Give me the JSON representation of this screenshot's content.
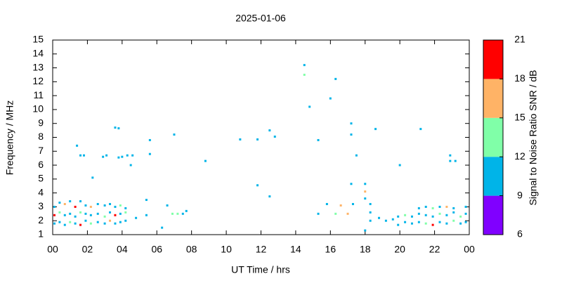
{
  "chart_data": {
    "type": "scatter",
    "title": "2025-01-06",
    "x_label": "UT Time / hrs",
    "y_label": "Frequency / MHz",
    "xlim": [
      0,
      24
    ],
    "xticks": [
      {
        "value": 0,
        "label": "00"
      },
      {
        "value": 2,
        "label": "02"
      },
      {
        "value": 4,
        "label": "04"
      },
      {
        "value": 6,
        "label": "06"
      },
      {
        "value": 8,
        "label": "08"
      },
      10,
      12,
      14,
      16,
      18,
      20,
      22,
      {
        "value": 24,
        "label": "00"
      }
    ],
    "ylim": [
      1,
      15
    ],
    "yticks": [
      1,
      2,
      3,
      4,
      5,
      6,
      7,
      8,
      9,
      10,
      11,
      12,
      13,
      14,
      15
    ],
    "colorbar": {
      "label": "Signal to Noise Ratio SNR / dB",
      "lim": [
        6,
        21
      ],
      "ticks": [
        6,
        9,
        12,
        15,
        18,
        21
      ],
      "colors": [
        "#8000ff",
        "#00b4e8",
        "#80ffa8",
        "#ffb366",
        "#ff0000"
      ]
    },
    "points": [
      [
        0.1,
        1.8,
        10
      ],
      [
        0.1,
        2.4,
        19
      ],
      [
        0.1,
        3.0,
        10
      ],
      [
        0.4,
        1.9,
        10
      ],
      [
        0.4,
        2.6,
        13
      ],
      [
        0.4,
        3.3,
        10
      ],
      [
        0.7,
        1.7,
        10
      ],
      [
        0.7,
        2.4,
        10
      ],
      [
        0.7,
        3.2,
        17
      ],
      [
        1.0,
        1.9,
        13
      ],
      [
        1.0,
        2.5,
        10
      ],
      [
        1.0,
        3.4,
        10
      ],
      [
        1.3,
        1.8,
        10
      ],
      [
        1.3,
        2.3,
        10
      ],
      [
        1.3,
        3.0,
        19
      ],
      [
        1.6,
        1.7,
        19
      ],
      [
        1.6,
        2.6,
        13
      ],
      [
        1.6,
        3.4,
        10
      ],
      [
        1.9,
        2.0,
        10
      ],
      [
        1.9,
        2.5,
        10
      ],
      [
        1.9,
        3.1,
        10
      ],
      [
        2.2,
        1.8,
        13
      ],
      [
        2.2,
        2.4,
        10
      ],
      [
        2.2,
        3.0,
        17
      ],
      [
        2.6,
        1.9,
        10
      ],
      [
        2.6,
        2.5,
        10
      ],
      [
        2.6,
        3.2,
        10
      ],
      [
        3.0,
        1.8,
        10
      ],
      [
        3.0,
        2.3,
        13
      ],
      [
        3.0,
        3.1,
        10
      ],
      [
        3.3,
        2.0,
        17
      ],
      [
        3.3,
        2.6,
        10
      ],
      [
        3.3,
        3.2,
        10
      ],
      [
        3.6,
        1.8,
        10
      ],
      [
        3.6,
        2.4,
        19
      ],
      [
        3.6,
        3.0,
        10
      ],
      [
        3.9,
        1.9,
        10
      ],
      [
        3.9,
        2.5,
        10
      ],
      [
        3.9,
        3.1,
        13
      ],
      [
        4.2,
        2.0,
        10
      ],
      [
        4.2,
        2.6,
        13
      ],
      [
        4.2,
        2.9,
        10
      ],
      [
        4.8,
        2.2,
        10
      ],
      [
        5.4,
        2.4,
        10
      ],
      [
        1.4,
        7.4,
        10
      ],
      [
        1.6,
        6.7,
        10
      ],
      [
        1.8,
        6.7,
        10
      ],
      [
        2.3,
        5.1,
        10
      ],
      [
        2.9,
        6.6,
        10
      ],
      [
        3.1,
        6.7,
        10
      ],
      [
        3.6,
        8.7,
        10
      ],
      [
        3.8,
        8.65,
        10
      ],
      [
        3.8,
        6.55,
        10
      ],
      [
        4.0,
        6.6,
        10
      ],
      [
        4.3,
        6.7,
        10
      ],
      [
        4.6,
        6.7,
        10
      ],
      [
        4.5,
        6.0,
        10
      ],
      [
        5.4,
        3.5,
        10
      ],
      [
        5.6,
        7.8,
        10
      ],
      [
        5.6,
        6.8,
        10
      ],
      [
        6.3,
        1.5,
        10
      ],
      [
        6.6,
        3.1,
        10
      ],
      [
        7.0,
        8.2,
        10
      ],
      [
        6.9,
        2.5,
        13
      ],
      [
        7.2,
        2.5,
        13
      ],
      [
        7.5,
        2.5,
        10
      ],
      [
        7.7,
        2.7,
        10
      ],
      [
        8.8,
        6.3,
        10
      ],
      [
        10.8,
        7.85,
        10
      ],
      [
        11.8,
        7.85,
        10
      ],
      [
        11.8,
        4.55,
        10
      ],
      [
        12.5,
        8.5,
        10
      ],
      [
        12.5,
        3.75,
        10
      ],
      [
        12.8,
        8.05,
        10
      ],
      [
        14.5,
        13.2,
        10
      ],
      [
        14.5,
        12.5,
        13
      ],
      [
        14.8,
        10.2,
        10
      ],
      [
        15.3,
        7.8,
        10
      ],
      [
        15.3,
        2.5,
        10
      ],
      [
        15.8,
        3.2,
        10
      ],
      [
        16.0,
        10.8,
        10
      ],
      [
        16.3,
        12.2,
        10
      ],
      [
        16.3,
        2.5,
        13
      ],
      [
        16.6,
        3.1,
        17
      ],
      [
        17.0,
        2.5,
        17
      ],
      [
        17.2,
        9.0,
        10
      ],
      [
        17.2,
        8.2,
        10
      ],
      [
        17.2,
        4.65,
        10
      ],
      [
        17.5,
        6.7,
        10
      ],
      [
        17.3,
        3.2,
        10
      ],
      [
        18.0,
        4.65,
        10
      ],
      [
        18.0,
        4.1,
        17
      ],
      [
        18.0,
        3.6,
        10
      ],
      [
        18.0,
        1.3,
        10
      ],
      [
        18.6,
        8.6,
        10
      ],
      [
        20.0,
        6.0,
        10
      ],
      [
        21.2,
        8.6,
        10
      ],
      [
        22.9,
        6.7,
        10
      ],
      [
        22.9,
        6.3,
        10
      ],
      [
        23.2,
        6.3,
        10
      ],
      [
        18.3,
        2.0,
        10
      ],
      [
        18.3,
        2.6,
        10
      ],
      [
        18.3,
        3.2,
        10
      ],
      [
        18.8,
        2.2,
        10
      ],
      [
        19.2,
        2.0,
        10
      ],
      [
        19.6,
        2.1,
        10
      ],
      [
        19.9,
        1.7,
        10
      ],
      [
        19.9,
        2.3,
        10
      ],
      [
        20.3,
        1.9,
        10
      ],
      [
        20.3,
        2.4,
        13
      ],
      [
        20.7,
        1.8,
        10
      ],
      [
        20.7,
        2.3,
        10
      ],
      [
        21.1,
        1.9,
        10
      ],
      [
        21.1,
        2.5,
        10
      ],
      [
        21.1,
        2.9,
        10
      ],
      [
        21.5,
        1.8,
        13
      ],
      [
        21.5,
        2.4,
        10
      ],
      [
        21.5,
        3.0,
        10
      ],
      [
        21.9,
        1.7,
        19
      ],
      [
        21.9,
        2.3,
        10
      ],
      [
        21.9,
        2.9,
        13
      ],
      [
        22.3,
        1.9,
        10
      ],
      [
        22.3,
        2.5,
        13
      ],
      [
        22.3,
        3.0,
        10
      ],
      [
        22.7,
        1.8,
        10
      ],
      [
        22.7,
        2.4,
        10
      ],
      [
        22.7,
        3.0,
        17
      ],
      [
        23.1,
        2.0,
        13
      ],
      [
        23.1,
        2.6,
        10
      ],
      [
        23.1,
        2.9,
        10
      ],
      [
        23.5,
        1.8,
        10
      ],
      [
        23.5,
        2.3,
        13
      ],
      [
        23.8,
        1.9,
        10
      ],
      [
        23.8,
        2.5,
        10
      ],
      [
        23.8,
        3.0,
        10
      ]
    ]
  }
}
